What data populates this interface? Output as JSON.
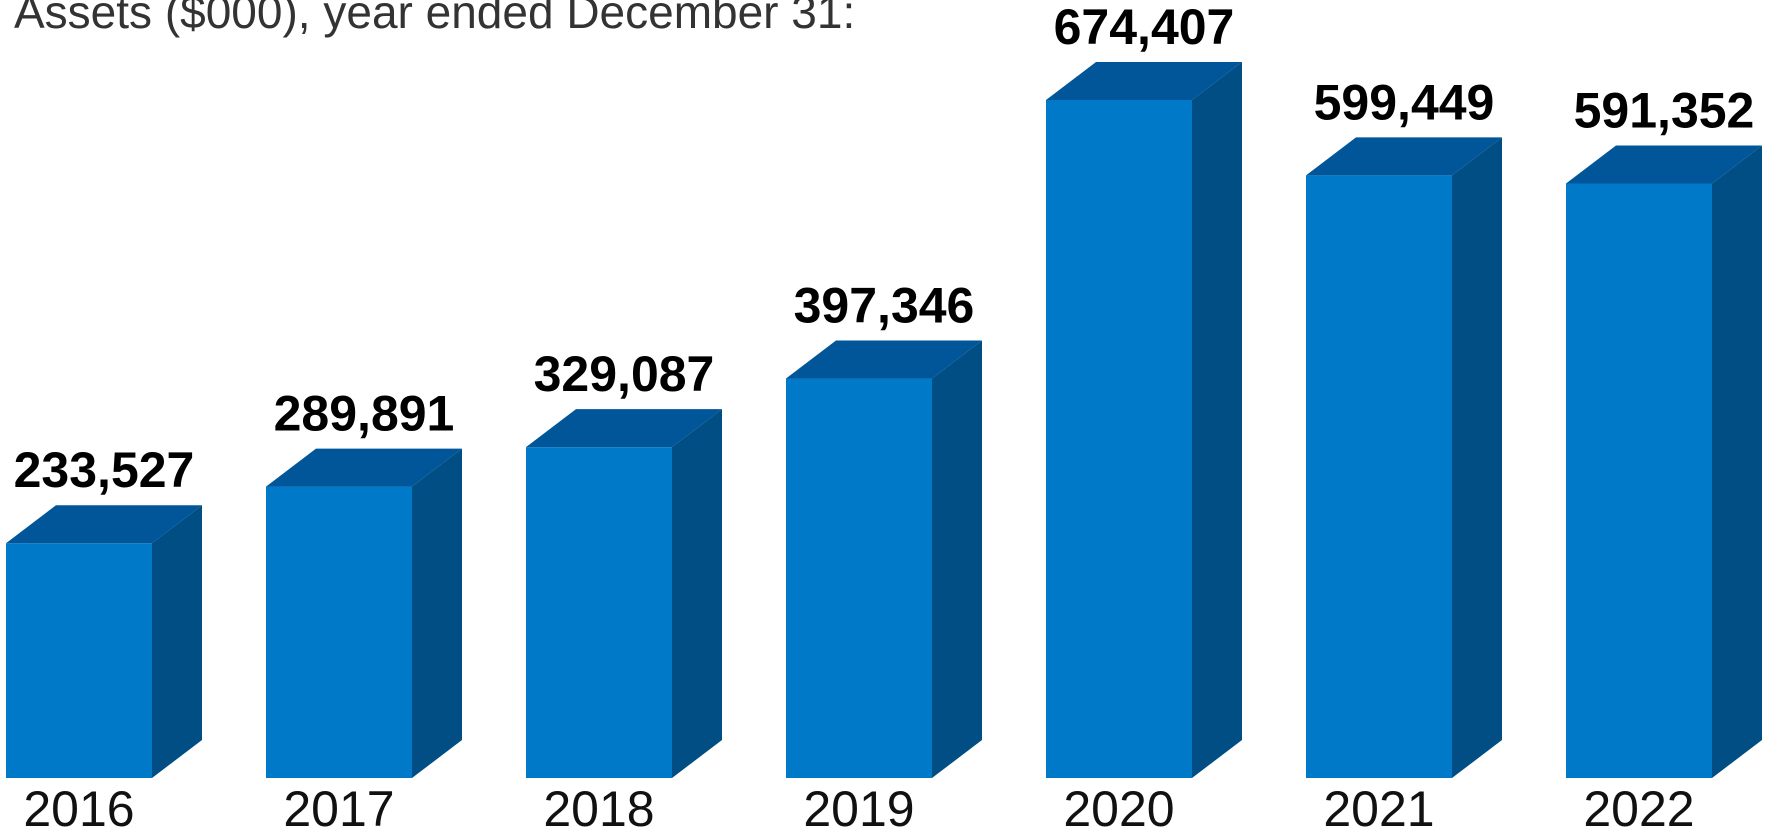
{
  "chart_data": {
    "type": "bar",
    "title": "Assets ($000), year ended December 31:",
    "categories": [
      "2016",
      "2017",
      "2018",
      "2019",
      "2020",
      "2021",
      "2022"
    ],
    "values": [
      233527,
      289891,
      329087,
      397346,
      674407,
      599449,
      591352
    ],
    "value_labels": [
      "233,527",
      "289,891",
      "329,087",
      "397,346",
      "674,407",
      "599,449",
      "591,352"
    ],
    "ylim": [
      0,
      674407
    ],
    "grid": false,
    "legend": "none",
    "style": "3d-bars",
    "colors": {
      "front": "#0079C8",
      "top": "#005698",
      "side": "#004E84"
    }
  }
}
